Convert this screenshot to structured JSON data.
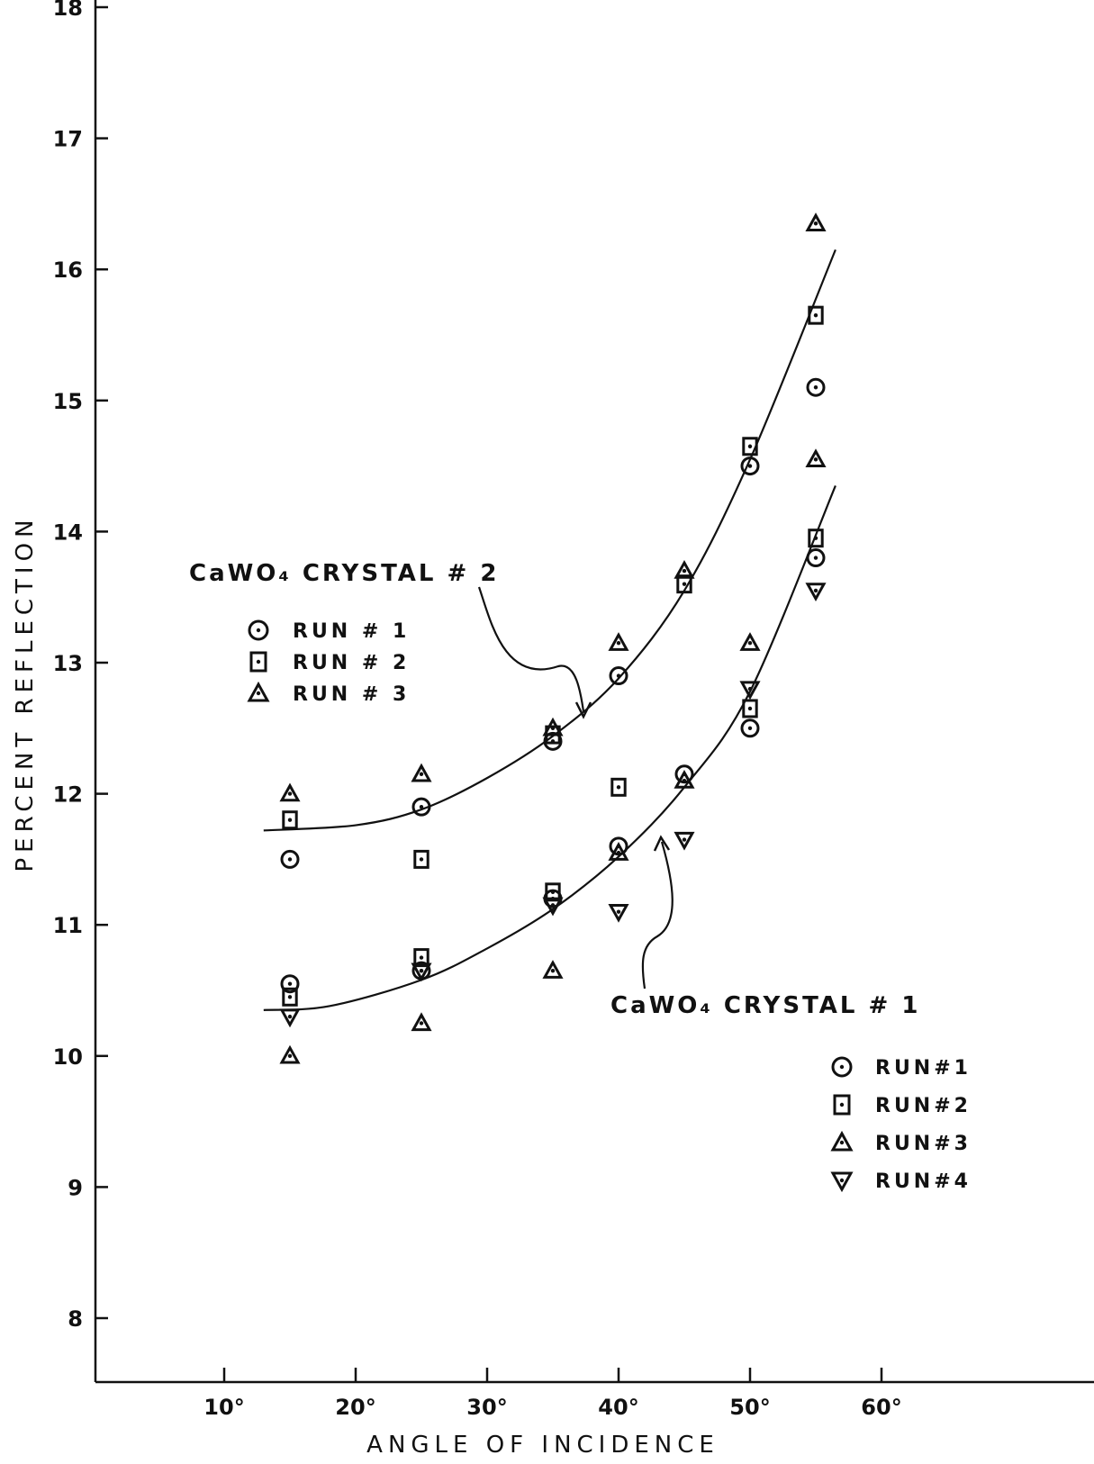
{
  "chart_data": {
    "type": "scatter",
    "xlabel": "ANGLE OF INCIDENCE",
    "ylabel": "PERCENT REFLECTION",
    "x_ticks": [
      "10°",
      "20°",
      "30°",
      "40°",
      "50°",
      "60°"
    ],
    "y_ticks": [
      "8",
      "9",
      "10",
      "11",
      "12",
      "13",
      "14",
      "15",
      "16",
      "17",
      "18"
    ],
    "xlim": [
      0,
      73
    ],
    "ylim": [
      7.5,
      18.1
    ],
    "grid": false,
    "groups": [
      {
        "label": "CaWO₄ CRYSTAL # 2",
        "legend": [
          {
            "marker": "circle",
            "text": "RUN # 1"
          },
          {
            "marker": "square",
            "text": "RUN # 2"
          },
          {
            "marker": "triangle",
            "text": "RUN # 3"
          }
        ],
        "series": [
          {
            "marker": "circle",
            "x": [
              15,
              25,
              35,
              40,
              50,
              55
            ],
            "y": [
              11.5,
              11.9,
              12.4,
              12.9,
              14.5,
              15.1
            ]
          },
          {
            "marker": "square",
            "x": [
              15,
              25,
              35,
              45,
              50,
              55
            ],
            "y": [
              11.8,
              11.5,
              12.45,
              13.6,
              14.65,
              15.65
            ]
          },
          {
            "marker": "triangle",
            "x": [
              15,
              25,
              35,
              40,
              45,
              55,
              55
            ],
            "y": [
              12.0,
              12.15,
              12.5,
              13.15,
              13.7,
              16.35,
              14.55
            ]
          }
        ],
        "fit_curve": {
          "x": [
            13,
            20,
            25,
            30,
            35,
            40,
            45,
            50,
            56.5
          ],
          "y": [
            11.72,
            11.76,
            11.88,
            12.12,
            12.44,
            12.88,
            13.55,
            14.55,
            16.15
          ]
        }
      },
      {
        "label": "CaWO₄ CRYSTAL # 1",
        "legend": [
          {
            "marker": "circle",
            "text": "RUN#1"
          },
          {
            "marker": "square",
            "text": "RUN#2"
          },
          {
            "marker": "triangle",
            "text": "RUN#3"
          },
          {
            "marker": "triangle-down",
            "text": "RUN#4"
          }
        ],
        "series": [
          {
            "marker": "circle",
            "x": [
              15,
              25,
              35,
              40,
              45,
              50,
              55
            ],
            "y": [
              10.55,
              10.65,
              11.2,
              11.6,
              12.15,
              12.5,
              13.8
            ]
          },
          {
            "marker": "square",
            "x": [
              15,
              25,
              35,
              40,
              50,
              55
            ],
            "y": [
              10.45,
              10.75,
              11.25,
              12.05,
              12.65,
              13.95
            ]
          },
          {
            "marker": "triangle",
            "x": [
              15,
              25,
              35,
              40,
              45,
              50
            ],
            "y": [
              10.0,
              10.25,
              10.65,
              11.55,
              12.1,
              13.15
            ]
          },
          {
            "marker": "triangle-down",
            "x": [
              15,
              25,
              35,
              40,
              45,
              50,
              55
            ],
            "y": [
              10.3,
              10.65,
              11.15,
              11.1,
              11.65,
              12.8,
              13.55
            ]
          }
        ],
        "fit_curve": {
          "x": [
            13,
            18,
            25,
            30,
            35,
            40,
            45,
            50,
            56.5
          ],
          "y": [
            10.35,
            10.38,
            10.58,
            10.82,
            11.12,
            11.52,
            12.05,
            12.78,
            14.35
          ]
        }
      }
    ]
  }
}
